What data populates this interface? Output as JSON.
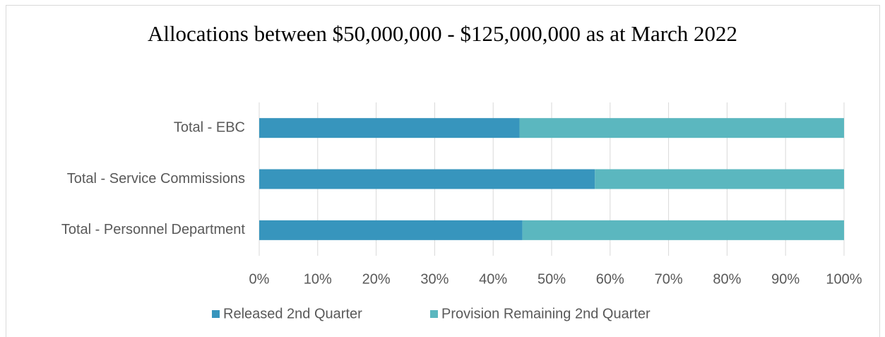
{
  "chart_data": {
    "type": "stacked_barh",
    "title": "Allocations between $50,000,000 - $125,000,000 as at March 2022",
    "categories": [
      "Total - EBC",
      "Total - Service Commissions",
      "Total - Personnel Department"
    ],
    "series": [
      {
        "name": "Released 2nd Quarter",
        "color": "#3795bd",
        "values": [
          44.5,
          57.4,
          45
        ]
      },
      {
        "name": "Provision Remaining 2nd Quarter",
        "color": "#5bb7bf",
        "values": [
          55.5,
          42.6,
          55
        ]
      }
    ],
    "xlim": [
      0,
      100
    ],
    "xticks": [
      {
        "value": 0,
        "label": "0%"
      },
      {
        "value": 10,
        "label": "10%"
      },
      {
        "value": 20,
        "label": "20%"
      },
      {
        "value": 30,
        "label": "30%"
      },
      {
        "value": 40,
        "label": "40%"
      },
      {
        "value": 50,
        "label": "50%"
      },
      {
        "value": 60,
        "label": "60%"
      },
      {
        "value": 70,
        "label": "70%"
      },
      {
        "value": 80,
        "label": "80%"
      },
      {
        "value": 90,
        "label": "90%"
      },
      {
        "value": 100,
        "label": "100%"
      }
    ],
    "grid": true,
    "legend": "bottom"
  }
}
